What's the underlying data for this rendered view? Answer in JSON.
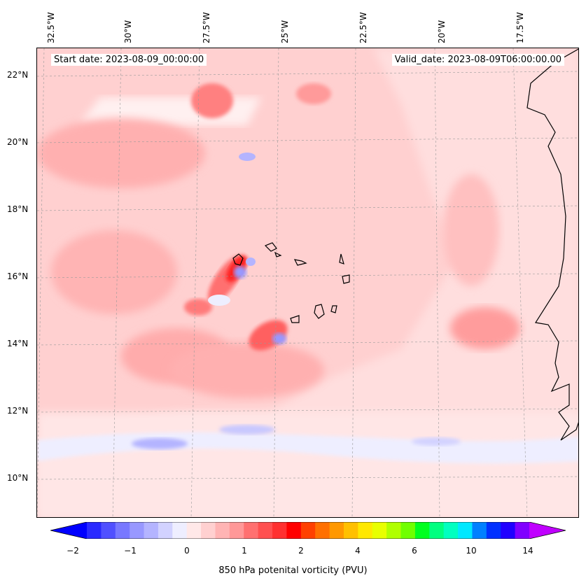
{
  "map": {
    "start_date": "Start date: 2023-08-09_00:00:00",
    "valid_date": "Valid_date: 2023-08-09T06:00:00.00",
    "lon_labels": [
      "32.5°W",
      "30°W",
      "27.5°W",
      "25°W",
      "22.5°W",
      "20°W",
      "17.5°W"
    ],
    "lat_labels": [
      "22°N",
      "20°N",
      "18°N",
      "16°N",
      "14°N",
      "12°N",
      "10°N"
    ]
  },
  "colorbar": {
    "label": "850 hPa potenital vorticity (PVU)",
    "ticks": [
      "−2",
      "−1",
      "0",
      "1",
      "2",
      "4",
      "6",
      "10",
      "14"
    ],
    "colors": [
      "#0000ff",
      "#2a2aff",
      "#5050ff",
      "#7878ff",
      "#9898ff",
      "#b4b4ff",
      "#d2d2ff",
      "#eeeeff",
      "#ffe8e8",
      "#ffd0d0",
      "#ffb4b4",
      "#ff9898",
      "#ff7070",
      "#ff5050",
      "#ff3030",
      "#ff0000",
      "#ff4000",
      "#ff7000",
      "#ff9800",
      "#ffc000",
      "#ffe800",
      "#e8ff00",
      "#b0ff00",
      "#70ff00",
      "#00ff20",
      "#00ff80",
      "#00ffc0",
      "#00e8ff",
      "#0080ff",
      "#0030ff",
      "#2000ff",
      "#8000ff",
      "#c000ff"
    ]
  }
}
